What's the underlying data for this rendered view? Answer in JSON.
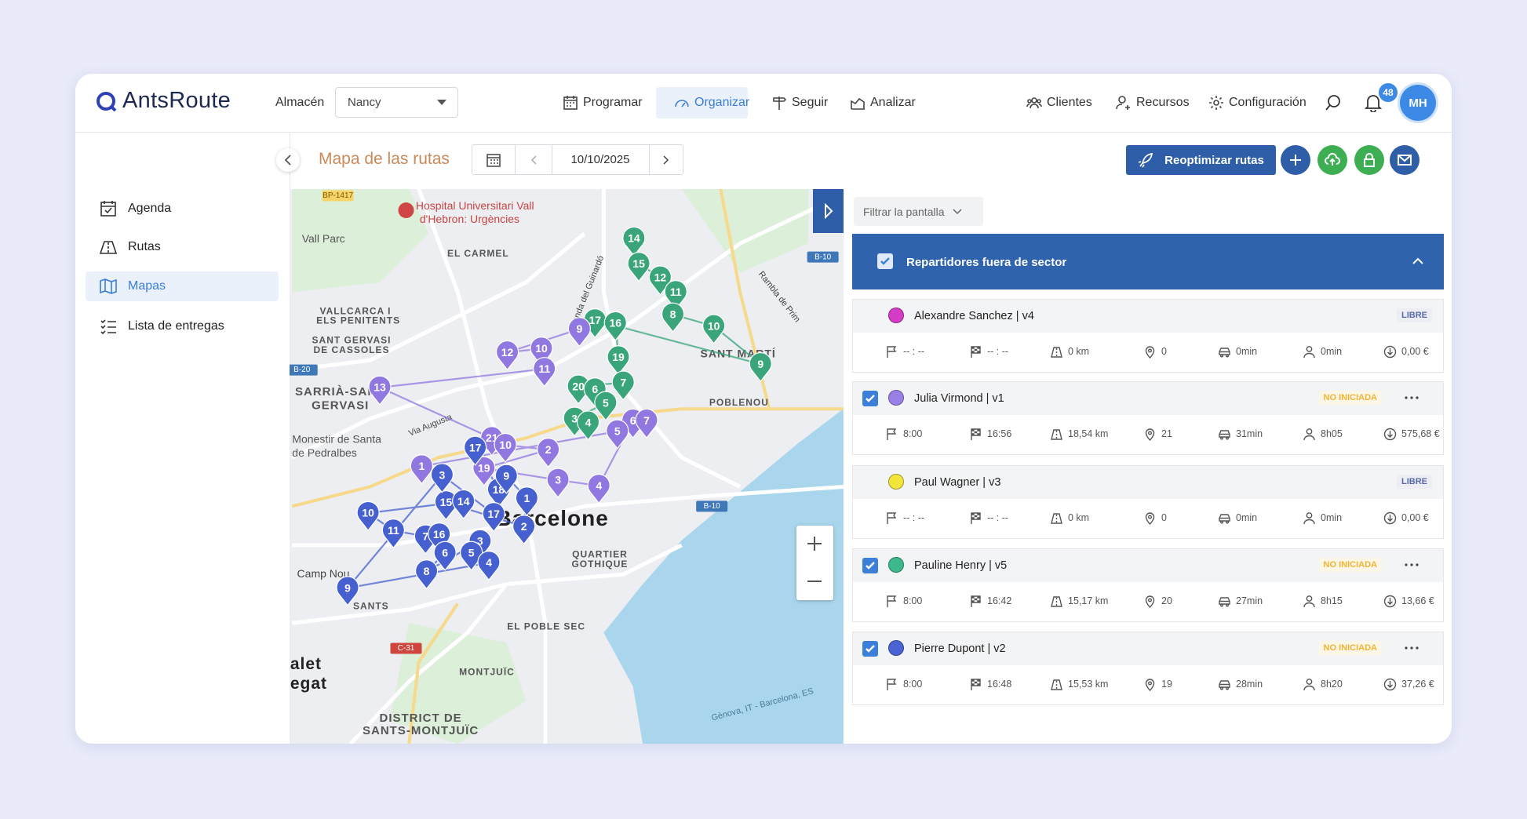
{
  "header": {
    "logo": "AntsRoute",
    "warehouse_label": "Almacén",
    "warehouse_value": "Nancy",
    "nav": [
      "Programar",
      "Organizar",
      "Seguir",
      "Analizar"
    ],
    "nav_right": [
      "Clientes",
      "Recursos",
      "Configuración"
    ],
    "notifications": 48,
    "avatar": "MH"
  },
  "sidebar": {
    "items": [
      "Agenda",
      "Rutas",
      "Mapas",
      "Lista de entregas"
    ]
  },
  "toolbar": {
    "title": "Mapa de las rutas",
    "date": "10/10/2025",
    "optimize_button": "Reoptimizar rutas"
  },
  "map": {
    "labels": [
      "Hospital Universitari Vall",
      "d'Hebron: Urgències",
      "Vall Parc",
      "EL CARMEL",
      "VALLCARCA I",
      "ELS PENITENTS",
      "SANT GERVASI",
      "DE CASSOLES",
      "SARRIÀ-SANT",
      "GERVASI",
      "Monestir de Santa",
      "de Pedralbes",
      "SANT MARTÍ",
      "POBLENOU",
      "Barcelone",
      "QUARTIER",
      "GOTHIQUE",
      "EL POBLE SEC",
      "MONTJUÏC",
      "DISTRICT DE",
      "SANTS-MONTJUÏC",
      "Camp Nou",
      "SANTS",
      "Via Augusta",
      "Ronda del Guinardó",
      "Rambla de Prim",
      "BP-1417",
      "B-20",
      "B-10",
      "B-10",
      "C-31",
      "Gènova, IT - Barcelona, ES",
      "alet",
      "egat"
    ],
    "routes": [
      {
        "color": "#3aa57a",
        "stops": [
          "14",
          "15",
          "12",
          "11",
          "8",
          "10",
          "9",
          "17",
          "16",
          "19",
          "7",
          "20",
          "6",
          "5",
          "3",
          "4"
        ]
      },
      {
        "color": "#9177e0",
        "stops": [
          "9",
          "12",
          "10",
          "11",
          "13",
          "21",
          "10",
          "2",
          "19",
          "3",
          "4",
          "6",
          "7",
          "5",
          "1"
        ]
      },
      {
        "color": "#4760d0",
        "stops": [
          "17",
          "18",
          "9",
          "1",
          "2",
          "15",
          "14",
          "10",
          "11",
          "7",
          "16",
          "6",
          "8",
          "3",
          "5",
          "4",
          "9",
          "3",
          "17"
        ]
      }
    ]
  },
  "panel": {
    "filter": "Filtrar la pantalla",
    "group": {
      "title": "Repartidores fuera de sector",
      "checked": true
    },
    "drivers": [
      {
        "name": "Alexandre Sanchez | v4",
        "color": "#d53bc6",
        "status": "LIBRE",
        "status_color": "#5a6aa8",
        "status_bg": "#eceef4",
        "checked": false,
        "stats": [
          "-- : --",
          "-- : --",
          "0 km",
          "0",
          "0min",
          "0min",
          "0,00 €"
        ]
      },
      {
        "name": "Julia Virmond | v1",
        "color": "#9a80e6",
        "status": "NO INICIADA",
        "status_color": "#f0b437",
        "status_bg": "#fbf6e6",
        "checked": true,
        "stats": [
          "8:00",
          "16:56",
          "18,54 km",
          "21",
          "31min",
          "8h05",
          "575,68 €"
        ]
      },
      {
        "name": "Paul Wagner | v3",
        "color": "#f2e53c",
        "status": "LIBRE",
        "status_color": "#5a6aa8",
        "status_bg": "#eceef4",
        "checked": false,
        "stats": [
          "-- : --",
          "-- : --",
          "0 km",
          "0",
          "0min",
          "0min",
          "0,00 €"
        ]
      },
      {
        "name": "Pauline Henry | v5",
        "color": "#3db88a",
        "status": "NO INICIADA",
        "status_color": "#f0b437",
        "status_bg": "#fbf6e6",
        "checked": true,
        "stats": [
          "8:00",
          "16:42",
          "15,17 km",
          "20",
          "27min",
          "8h15",
          "13,66 €"
        ]
      },
      {
        "name": "Pierre Dupont | v2",
        "color": "#4a64d6",
        "status": "NO INICIADA",
        "status_color": "#f0b437",
        "status_bg": "#fbf6e6",
        "checked": true,
        "stats": [
          "8:00",
          "16:48",
          "15,53 km",
          "19",
          "28min",
          "8h20",
          "37,26 €"
        ]
      }
    ]
  }
}
